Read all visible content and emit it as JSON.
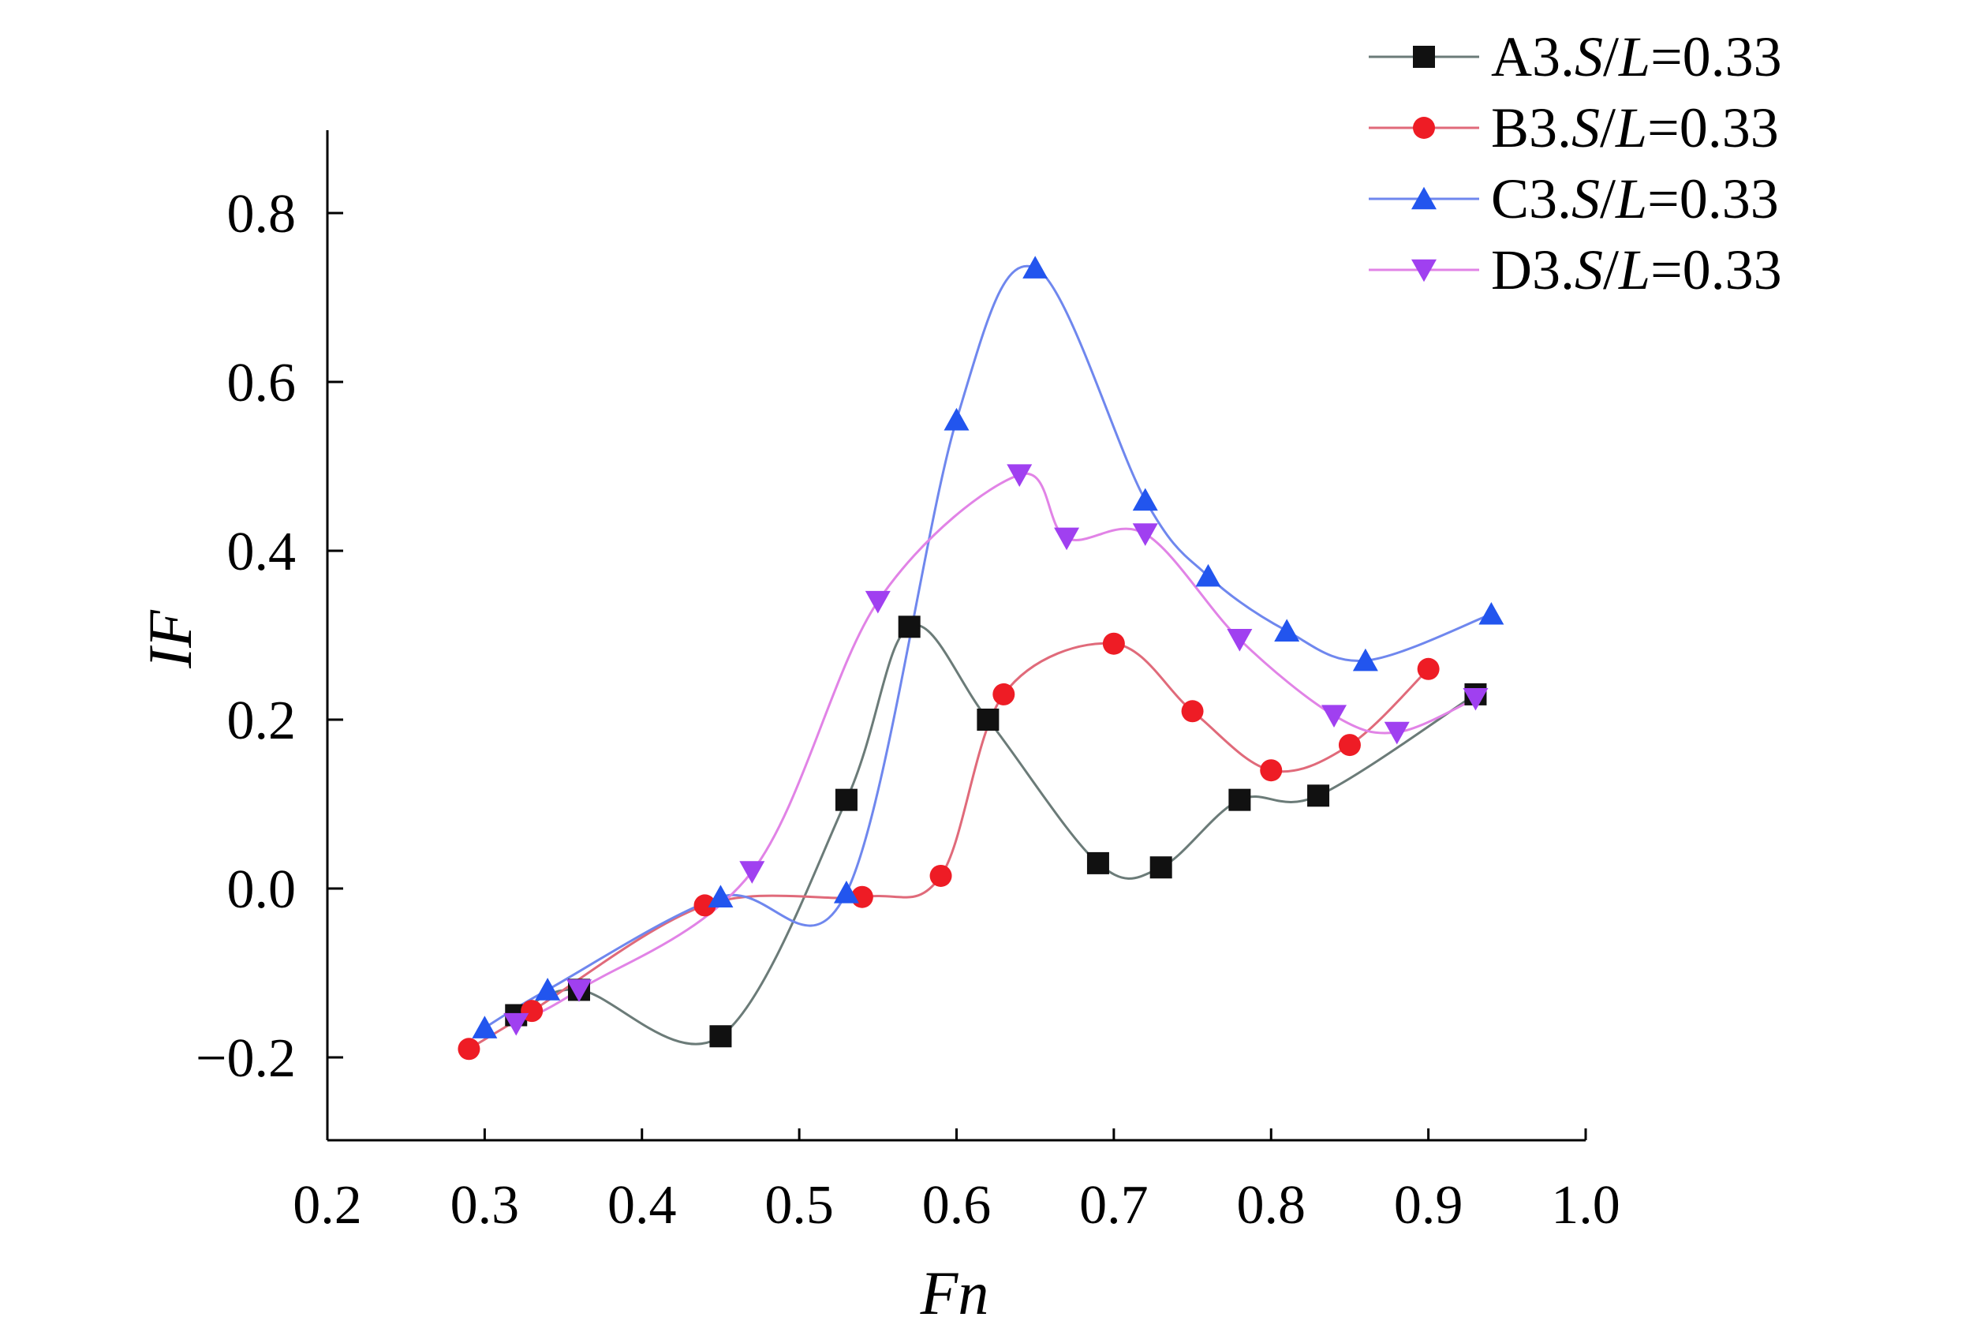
{
  "chart_data": {
    "type": "line",
    "xlabel": "Fn",
    "ylabel": "IF",
    "xlim": [
      0.2,
      1.0
    ],
    "ylim": [
      -0.3,
      0.9
    ],
    "x_ticks": [
      "0.2",
      "0.3",
      "0.4",
      "0.5",
      "0.6",
      "0.7",
      "0.8",
      "0.9",
      "1.0"
    ],
    "x_tick_values": [
      0.2,
      0.3,
      0.4,
      0.5,
      0.6,
      0.7,
      0.8,
      0.9,
      1.0
    ],
    "y_ticks": [
      "−0.2",
      "0.0",
      "0.2",
      "0.4",
      "0.6",
      "0.8"
    ],
    "y_tick_values": [
      -0.2,
      0.0,
      0.2,
      0.4,
      0.6,
      0.8
    ],
    "legend_position": "top-right",
    "series": [
      {
        "name": "A3.S/L=0.33",
        "legend_prefix": "A3.",
        "legend_suffix": "=0.33",
        "color": "#6b7b78",
        "marker_color": "#111111",
        "marker": "square",
        "x": [
          0.32,
          0.36,
          0.45,
          0.53,
          0.57,
          0.62,
          0.69,
          0.73,
          0.78,
          0.83,
          0.93
        ],
        "y": [
          -0.15,
          -0.12,
          -0.175,
          0.105,
          0.31,
          0.2,
          0.03,
          0.025,
          0.105,
          0.11,
          0.23
        ]
      },
      {
        "name": "B3.S/L=0.33",
        "legend_prefix": "B3.",
        "legend_suffix": "=0.33",
        "color": "#e06a7a",
        "marker_color": "#ee1c25",
        "marker": "circle",
        "x": [
          0.29,
          0.33,
          0.44,
          0.54,
          0.59,
          0.63,
          0.7,
          0.75,
          0.8,
          0.85,
          0.9
        ],
        "y": [
          -0.19,
          -0.145,
          -0.02,
          -0.01,
          0.015,
          0.23,
          0.29,
          0.21,
          0.14,
          0.17,
          0.26
        ]
      },
      {
        "name": "C3.S/L=0.33",
        "legend_prefix": "C3.",
        "legend_suffix": "=0.33",
        "color": "#6f87ee",
        "marker_color": "#2255ee",
        "marker": "triangle-up",
        "x": [
          0.3,
          0.34,
          0.45,
          0.53,
          0.6,
          0.65,
          0.72,
          0.76,
          0.81,
          0.86,
          0.94
        ],
        "y": [
          -0.165,
          -0.12,
          -0.01,
          -0.005,
          0.555,
          0.735,
          0.46,
          0.37,
          0.305,
          0.27,
          0.325
        ]
      },
      {
        "name": "D3.S/L=0.33",
        "legend_prefix": "D3.",
        "legend_suffix": "=0.33",
        "color": "#e183e6",
        "marker_color": "#a040f0",
        "marker": "triangle-down",
        "x": [
          0.32,
          0.36,
          0.47,
          0.55,
          0.64,
          0.67,
          0.72,
          0.78,
          0.84,
          0.88,
          0.93
        ],
        "y": [
          -0.16,
          -0.12,
          0.02,
          0.34,
          0.49,
          0.415,
          0.42,
          0.295,
          0.205,
          0.185,
          0.225
        ]
      }
    ]
  }
}
